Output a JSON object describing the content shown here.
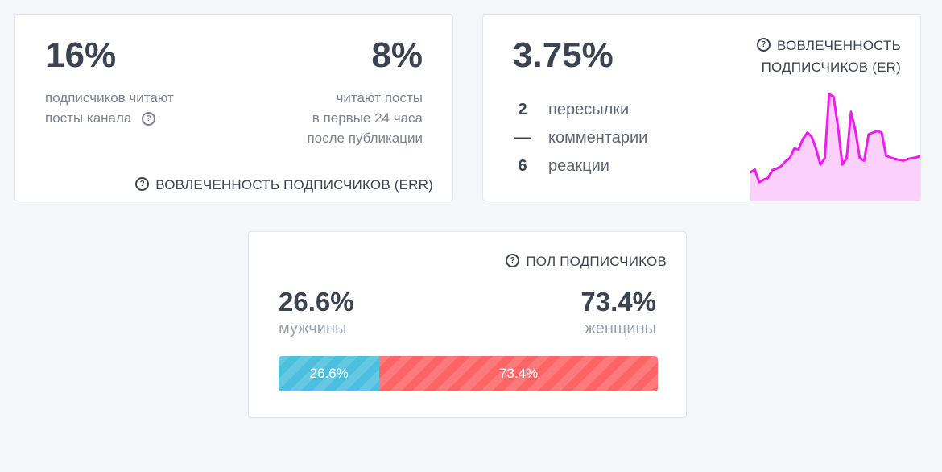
{
  "err_card": {
    "left_value": "16%",
    "left_desc": [
      "подписчиков читают",
      "посты канала"
    ],
    "right_value": "8%",
    "right_desc": [
      "читают посты",
      "в первые 24 часа",
      "после публикации"
    ],
    "title": "ВОВЛЕЧЕННОСТЬ ПОДПИСЧИКОВ (ERR)",
    "help_icon": "question-circle-icon"
  },
  "er_card": {
    "value": "3.75%",
    "title": [
      "ВОВЛЕЧЕННОСТЬ",
      "ПОДПИСЧИКОВ (ER)"
    ],
    "stats": [
      {
        "value": "2",
        "label": "пересылки"
      },
      {
        "value": "—",
        "label": "комментарии"
      },
      {
        "value": "6",
        "label": "реакции"
      }
    ],
    "sparkline": {
      "color": "#ee1cee",
      "fill": "#fbd1fb",
      "values": [
        36,
        40,
        24,
        27,
        29,
        39,
        41,
        44,
        50,
        54,
        66,
        65,
        78,
        86,
        81,
        66,
        46,
        54,
        134,
        131,
        94,
        46,
        54,
        112,
        88,
        54,
        51,
        84,
        86,
        88,
        86,
        57,
        55,
        53,
        52,
        51,
        53,
        54,
        55,
        57
      ]
    }
  },
  "gender_card": {
    "title": "ПОЛ ПОДПИСЧИКОВ",
    "male_pct": "26.6%",
    "male_label": "мужчины",
    "female_pct": "73.4%",
    "female_label": "женщины",
    "male_share": 26.6,
    "female_share": 73.4,
    "male_color": "#4bbfdd",
    "female_color": "#fc6466"
  }
}
